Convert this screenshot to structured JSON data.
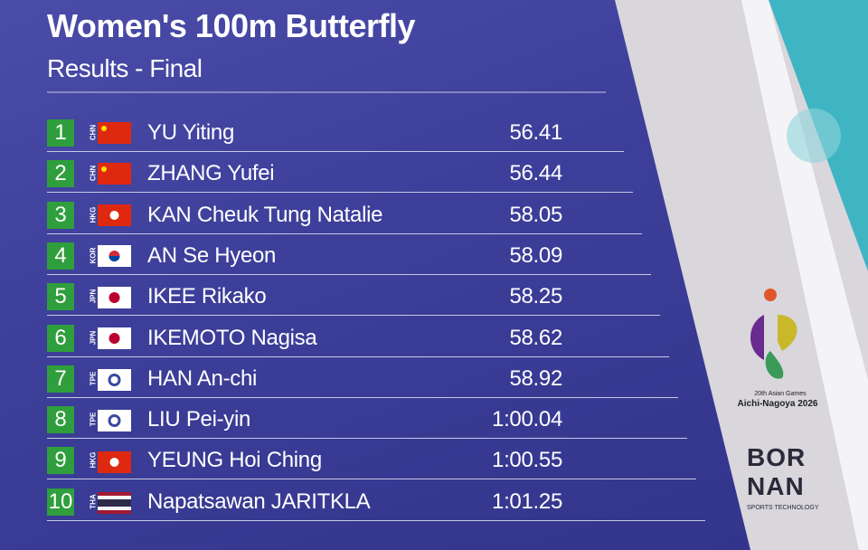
{
  "header": {
    "title": "Women's 100m Butterfly",
    "subtitle": "Results - Final"
  },
  "table": {
    "rows": [
      [
        "1",
        "CHN",
        "YU Yiting",
        "56.41"
      ],
      [
        "2",
        "CHN",
        "ZHANG Yufei",
        "56.44"
      ],
      [
        "3",
        "HKG",
        "KAN Cheuk Tung Natalie",
        "58.05"
      ],
      [
        "4",
        "KOR",
        "AN Se Hyeon",
        "58.09"
      ],
      [
        "5",
        "JPN",
        "IKEE Rikako",
        "58.25"
      ],
      [
        "6",
        "JPN",
        "IKEMOTO Nagisa",
        "58.62"
      ],
      [
        "7",
        "TPE",
        "HAN An-chi",
        "58.92"
      ],
      [
        "8",
        "TPE",
        "LIU Pei-yin",
        "1:00.04"
      ],
      [
        "9",
        "HKG",
        "YEUNG Hoi Ching",
        "1:00.55"
      ],
      [
        "10",
        "THA",
        "Napatsawan JARITKLA",
        "1:01.25"
      ]
    ]
  },
  "logos": {
    "games_line1": "20th Asian Games",
    "games_line2": "Aichi-Nagoya 2026",
    "sponsor_line1": "BOR",
    "sponsor_line2": "NAN",
    "sponsor_tagline": "SPORTS TECHNOLOGY"
  }
}
